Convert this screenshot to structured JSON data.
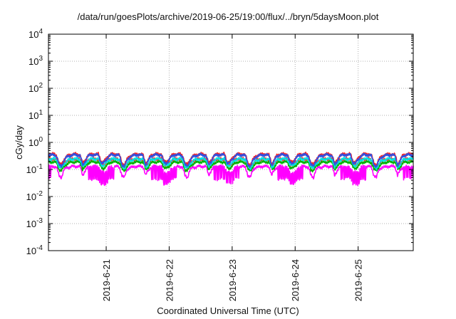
{
  "chart_data": {
    "type": "line",
    "title": "/data/run/goesPlots/archive/2019-06-25/19:00/flux/../bryn/5daysMoon.plot",
    "xlabel": "Coordinated Universal Time (UTC)",
    "ylabel": "cGy/day",
    "yscale": "log",
    "ylim": [
      0.0001,
      10000
    ],
    "y_ticks": [
      {
        "base": "10",
        "exp": "-4"
      },
      {
        "base": "10",
        "exp": "-3"
      },
      {
        "base": "10",
        "exp": "-2"
      },
      {
        "base": "10",
        "exp": "-1"
      },
      {
        "base": "10",
        "exp": "0"
      },
      {
        "base": "10",
        "exp": "1"
      },
      {
        "base": "10",
        "exp": "2"
      },
      {
        "base": "10",
        "exp": "3"
      },
      {
        "base": "10",
        "exp": "4"
      }
    ],
    "xlim": [
      "2019-06-20 02:00",
      "2019-06-25 21:00"
    ],
    "x_ticks": [
      "2019-6-21",
      "2019-6-22",
      "2019-6-23",
      "2019-6-24",
      "2019-6-25"
    ],
    "grid": true,
    "series": [
      {
        "color": "#ff00ff",
        "pattern": [
          0.08,
          0.12,
          0.13,
          0.13,
          0.13,
          0.12,
          0.06,
          0.05,
          0.1,
          0.12,
          0.12,
          0.13,
          0.13,
          0.13,
          0.13,
          0.06,
          0.09,
          0.12,
          0.13,
          0.13,
          0.13,
          0.13,
          0.08,
          0.08
        ]
      },
      {
        "color": "#ff2a2a",
        "pattern": [
          0.18,
          0.22,
          0.25,
          0.24,
          0.25,
          0.23,
          0.14,
          0.12,
          0.17,
          0.21,
          0.23,
          0.24,
          0.25,
          0.24,
          0.24,
          0.13,
          0.16,
          0.22,
          0.24,
          0.25,
          0.24,
          0.25,
          0.16,
          0.15
        ]
      },
      {
        "color": "#00b000",
        "pattern": [
          0.13,
          0.17,
          0.19,
          0.19,
          0.19,
          0.18,
          0.1,
          0.09,
          0.13,
          0.16,
          0.18,
          0.19,
          0.19,
          0.19,
          0.19,
          0.1,
          0.12,
          0.17,
          0.19,
          0.19,
          0.19,
          0.19,
          0.12,
          0.11
        ]
      },
      {
        "color": "#00e0e0",
        "pattern": [
          0.17,
          0.22,
          0.25,
          0.24,
          0.25,
          0.23,
          0.13,
          0.11,
          0.16,
          0.21,
          0.23,
          0.24,
          0.25,
          0.24,
          0.24,
          0.12,
          0.15,
          0.22,
          0.24,
          0.25,
          0.24,
          0.25,
          0.15,
          0.14
        ]
      },
      {
        "color": "#ff2020",
        "pattern": [
          0.25,
          0.33,
          0.38,
          0.36,
          0.38,
          0.34,
          0.17,
          0.15,
          0.24,
          0.31,
          0.34,
          0.36,
          0.38,
          0.36,
          0.35,
          0.16,
          0.22,
          0.33,
          0.36,
          0.38,
          0.36,
          0.38,
          0.2,
          0.19
        ]
      },
      {
        "color": "#3050e0",
        "pattern": [
          0.23,
          0.31,
          0.35,
          0.34,
          0.35,
          0.32,
          0.15,
          0.13,
          0.22,
          0.29,
          0.32,
          0.34,
          0.35,
          0.34,
          0.33,
          0.14,
          0.2,
          0.31,
          0.34,
          0.35,
          0.34,
          0.35,
          0.18,
          0.17
        ]
      }
    ]
  }
}
